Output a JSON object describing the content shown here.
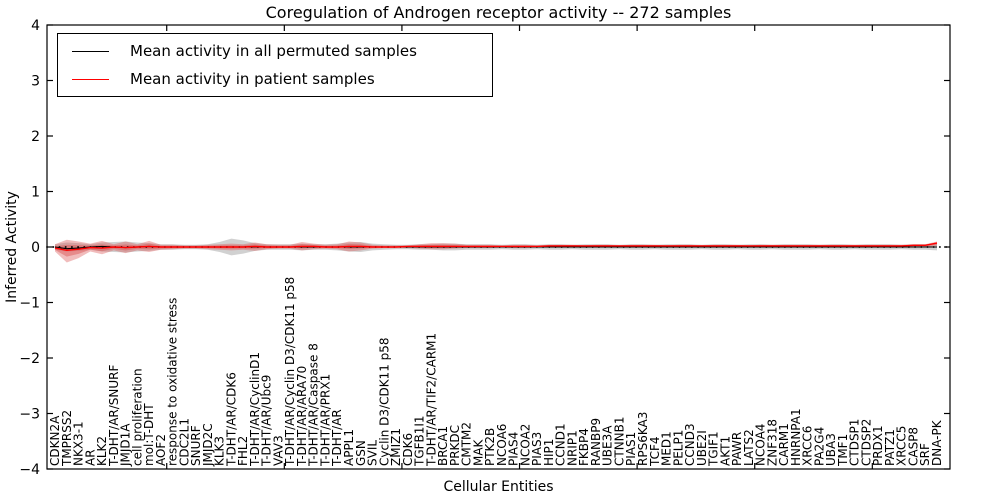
{
  "chart_data": {
    "type": "line",
    "title": "Coregulation of Androgen receptor activity -- 272 samples",
    "xlabel": "Cellular Entities",
    "ylabel": "Inferred Activity",
    "ylim": [
      -4,
      4
    ],
    "yticks": [
      4,
      3,
      2,
      1,
      0,
      -1,
      -2,
      -3,
      -4
    ],
    "ytick_labels": [
      "4",
      "3",
      "2",
      "1",
      "0",
      "−1",
      "−2",
      "−3",
      "−4"
    ],
    "grid": false,
    "legend_position": "upper left",
    "legend": [
      {
        "label": "Mean activity in all permuted samples",
        "color": "#000000"
      },
      {
        "label": "Mean activity in patient samples",
        "color": "#ff0000"
      }
    ],
    "categories": [
      "CDKN2A",
      "TMPRSS2",
      "NKX3-1",
      "AR",
      "KLK2",
      "T-DHT/AR/SNURF",
      "JMJD1A",
      "cell proliferation",
      "mol:T-DHT",
      "AOF2",
      "response to oxidative stress",
      "CDC2L1",
      "SNURF",
      "JMJD2C",
      "KLK3",
      "T-DHT/AR/CDK6",
      "FHL2",
      "T-DHT/AR/CyclinD1",
      "T-DHT/AR/Ubc9",
      "VAV3",
      "T-DHT/AR/Cyclin D3/CDK11 p58",
      "T-DHT/AR/ARA70",
      "T-DHT/AR/Caspase 8",
      "T-DHT/AR/PRX1",
      "T-DHT/AR",
      "APPL1",
      "GSN",
      "SVIL",
      "Cyclin D3/CDK11 p58",
      "ZMIZ1",
      "CDK6",
      "TGFB1I1",
      "T-DHT/AR/TIF2/CARM1",
      "BRCA1",
      "PRKDC",
      "CMTM2",
      "MAK",
      "PTK2B",
      "NCOA6",
      "PIAS4",
      "NCOA2",
      "PIAS3",
      "HIP1",
      "CCND1",
      "NRIP1",
      "FKBP4",
      "RANBP9",
      "UBE3A",
      "CTNNB1",
      "PIAS1",
      "RPS6KA3",
      "TCF4",
      "MED1",
      "PELP1",
      "CCND3",
      "UBE2I",
      "TGIF1",
      "AKT1",
      "PAWR",
      "LATS2",
      "NCOA4",
      "ZNF318",
      "CARM1",
      "HNRNPA1",
      "XRCC6",
      "PA2G4",
      "UBA3",
      "TMF1",
      "CTDSP1",
      "CTDSP2",
      "PRDX1",
      "PATZ1",
      "XRCC5",
      "CASP8",
      "SRF",
      "DNA-PK"
    ],
    "series": [
      {
        "name": "Mean activity in all permuted samples",
        "color": "#000000",
        "style": "solid",
        "values": [
          0.0,
          -0.03,
          -0.02,
          0.0,
          0.01,
          0.0,
          -0.01,
          0.0,
          0.01,
          0.0,
          0.0,
          0.0,
          0.0,
          0.0,
          0.0,
          0.0,
          0.0,
          0.0,
          0.0,
          0.0,
          0.0,
          0.0,
          0.0,
          0.0,
          0.0,
          0.0,
          0.0,
          0.0,
          0.0,
          0.0,
          0.0,
          0.0,
          0.0,
          0.0,
          0.0,
          0.0,
          0.0,
          0.0,
          0.0,
          0.0,
          0.0,
          0.0,
          0.0,
          0.0,
          0.0,
          0.0,
          0.0,
          0.0,
          0.0,
          0.0,
          0.0,
          0.0,
          0.0,
          0.0,
          0.0,
          0.0,
          0.0,
          0.0,
          0.0,
          0.0,
          0.0,
          0.0,
          0.0,
          0.0,
          0.0,
          0.0,
          0.0,
          0.0,
          0.0,
          0.0,
          0.0,
          0.0,
          0.0,
          0.0,
          0.0,
          0.0
        ]
      },
      {
        "name": "Mean activity in patient samples",
        "color": "#ff0000",
        "style": "solid",
        "values": [
          -0.02,
          -0.06,
          -0.04,
          -0.01,
          -0.02,
          0.0,
          -0.01,
          0.0,
          0.01,
          0.0,
          0.0,
          0.0,
          0.0,
          0.0,
          0.0,
          0.0,
          0.0,
          0.01,
          0.0,
          0.0,
          0.0,
          0.01,
          0.01,
          0.0,
          0.0,
          0.01,
          0.01,
          0.0,
          0.0,
          0.0,
          0.01,
          0.01,
          0.01,
          0.01,
          0.01,
          0.01,
          0.01,
          0.01,
          0.01,
          0.01,
          0.01,
          0.01,
          0.02,
          0.02,
          0.02,
          0.02,
          0.02,
          0.02,
          0.02,
          0.02,
          0.02,
          0.02,
          0.02,
          0.02,
          0.02,
          0.02,
          0.02,
          0.02,
          0.02,
          0.02,
          0.02,
          0.02,
          0.02,
          0.02,
          0.02,
          0.02,
          0.02,
          0.02,
          0.02,
          0.02,
          0.02,
          0.02,
          0.02,
          0.03,
          0.03,
          0.07
        ]
      }
    ],
    "bands": [
      {
        "name": "permuted samples std band",
        "color": "#999999",
        "symmetric": true,
        "upper": [
          0.05,
          0.08,
          0.07,
          0.05,
          0.08,
          0.09,
          0.1,
          0.08,
          0.07,
          0.05,
          0.05,
          0.04,
          0.04,
          0.05,
          0.09,
          0.15,
          0.12,
          0.07,
          0.05,
          0.05,
          0.05,
          0.06,
          0.05,
          0.05,
          0.06,
          0.08,
          0.09,
          0.06,
          0.05,
          0.04,
          0.04,
          0.05,
          0.05,
          0.06,
          0.06,
          0.05,
          0.05,
          0.05,
          0.04,
          0.05,
          0.05,
          0.04,
          0.05,
          0.05,
          0.04,
          0.05,
          0.05,
          0.05,
          0.04,
          0.05,
          0.05,
          0.04,
          0.05,
          0.05,
          0.05,
          0.04,
          0.05,
          0.05,
          0.04,
          0.05,
          0.05,
          0.04,
          0.05,
          0.05,
          0.05,
          0.04,
          0.05,
          0.05,
          0.04,
          0.05,
          0.05,
          0.05,
          0.04,
          0.05,
          0.05,
          0.06
        ]
      },
      {
        "name": "patient samples std band",
        "color": "#d94f4f",
        "symmetric": false,
        "upper": [
          0.05,
          0.13,
          0.1,
          0.06,
          0.11,
          0.05,
          0.1,
          0.05,
          0.11,
          0.04,
          0.04,
          0.03,
          0.03,
          0.04,
          0.05,
          0.06,
          0.05,
          0.08,
          0.05,
          0.04,
          0.04,
          0.09,
          0.06,
          0.04,
          0.05,
          0.1,
          0.08,
          0.04,
          0.03,
          0.03,
          0.03,
          0.05,
          0.07,
          0.07,
          0.06,
          0.04,
          0.04,
          0.04,
          0.03,
          0.04,
          0.04,
          0.03,
          0.04,
          0.04,
          0.04,
          0.03,
          0.04,
          0.04,
          0.03,
          0.04,
          0.04,
          0.04,
          0.03,
          0.04,
          0.04,
          0.03,
          0.04,
          0.04,
          0.04,
          0.03,
          0.04,
          0.04,
          0.04,
          0.04,
          0.04,
          0.04,
          0.04,
          0.04,
          0.04,
          0.04,
          0.04,
          0.04,
          0.04,
          0.05,
          0.05,
          0.1
        ],
        "lower": [
          -0.08,
          -0.28,
          -0.2,
          -0.08,
          -0.13,
          -0.06,
          -0.11,
          -0.06,
          -0.09,
          -0.05,
          -0.04,
          -0.03,
          -0.03,
          -0.04,
          -0.05,
          -0.06,
          -0.05,
          -0.07,
          -0.04,
          -0.03,
          -0.03,
          -0.06,
          -0.04,
          -0.03,
          -0.04,
          -0.08,
          -0.06,
          -0.03,
          -0.02,
          -0.02,
          -0.02,
          -0.03,
          -0.04,
          -0.04,
          -0.03,
          -0.02,
          -0.02,
          -0.02,
          -0.01,
          -0.02,
          -0.02,
          -0.01,
          -0.01,
          -0.01,
          -0.01,
          -0.01,
          -0.01,
          -0.01,
          -0.01,
          -0.01,
          -0.01,
          -0.01,
          -0.01,
          -0.01,
          -0.01,
          -0.01,
          -0.01,
          -0.01,
          -0.01,
          -0.01,
          -0.01,
          -0.01,
          -0.01,
          -0.01,
          -0.01,
          -0.01,
          -0.01,
          -0.01,
          -0.01,
          -0.01,
          -0.01,
          0.0,
          0.0,
          0.0,
          0.0,
          0.02
        ]
      }
    ],
    "zero_reference_line": {
      "style": "dotted",
      "color": "#000000",
      "y": 0
    }
  }
}
